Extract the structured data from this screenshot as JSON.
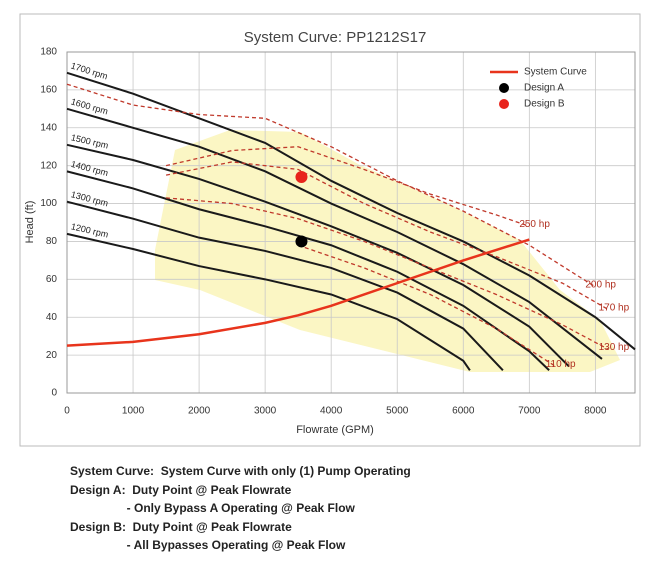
{
  "chart_data": {
    "type": "line",
    "title": "System Curve: PP1212S17",
    "x_label": "Flowrate (GPM)",
    "y_label": "Head (ft)",
    "xlim": [
      0,
      8600
    ],
    "ylim": [
      0,
      180
    ],
    "xticks": [
      0,
      1000,
      2000,
      3000,
      4000,
      5000,
      6000,
      7000,
      8000
    ],
    "yticks": [
      0,
      20,
      40,
      60,
      80,
      100,
      120,
      140,
      160,
      180
    ],
    "grid": true,
    "legend_position": "upper right",
    "series": [
      {
        "name": "1700 rpm",
        "color": "#1a1a1a",
        "label_at": "start",
        "x": [
          0,
          1000,
          2000,
          3000,
          4000,
          5000,
          6000,
          7000,
          8000,
          8600
        ],
        "values": [
          169,
          158,
          145,
          132,
          112,
          95,
          80,
          62,
          40,
          23
        ]
      },
      {
        "name": "1600 rpm",
        "color": "#1a1a1a",
        "label_at": "start",
        "x": [
          0,
          1000,
          2000,
          3000,
          4000,
          5000,
          6000,
          7000,
          8100
        ],
        "values": [
          150,
          140,
          130,
          117,
          100,
          85,
          68,
          48,
          18
        ]
      },
      {
        "name": "1500 rpm",
        "color": "#1a1a1a",
        "label_at": "start",
        "x": [
          0,
          1000,
          2000,
          3000,
          4000,
          5000,
          6000,
          7000,
          7600
        ],
        "values": [
          131,
          123,
          113,
          101,
          88,
          74,
          57,
          35,
          14
        ]
      },
      {
        "name": "1400 rpm",
        "color": "#1a1a1a",
        "label_at": "start",
        "x": [
          0,
          1000,
          2000,
          3000,
          4000,
          5000,
          6000,
          7000,
          7300
        ],
        "values": [
          117,
          108,
          97,
          88,
          78,
          64,
          46,
          22,
          12
        ]
      },
      {
        "name": "1300 rpm",
        "color": "#1a1a1a",
        "label_at": "start",
        "x": [
          0,
          1000,
          2000,
          3000,
          4000,
          5000,
          6000,
          6600
        ],
        "values": [
          101,
          92,
          82,
          75,
          66,
          53,
          34,
          12
        ]
      },
      {
        "name": "1200 rpm",
        "color": "#1a1a1a",
        "label_at": "start",
        "x": [
          0,
          1000,
          2000,
          3000,
          4000,
          5000,
          6000,
          6100
        ],
        "values": [
          84,
          76,
          67,
          60,
          52,
          39,
          17,
          12
        ]
      },
      {
        "name": "250 hp",
        "color": "#c0392b",
        "dashed": true,
        "label_at": "end",
        "x": [
          1500,
          2500,
          3500,
          4500,
          5500,
          6500,
          7000
        ],
        "values": [
          120,
          128,
          130,
          118,
          105,
          94,
          88
        ]
      },
      {
        "name": "200 hp",
        "color": "#c0392b",
        "dashed": true,
        "label_at": "end",
        "x": [
          0,
          1000,
          2000,
          3000,
          4000,
          5000,
          6000,
          7000,
          8000
        ],
        "values": [
          163,
          152,
          147,
          145,
          130,
          112,
          96,
          78,
          56
        ]
      },
      {
        "name": "170 hp",
        "color": "#c0392b",
        "dashed": true,
        "label_at": "end",
        "x": [
          1500,
          2500,
          3500,
          4500,
          5500,
          6500,
          7500,
          8200
        ],
        "values": [
          115,
          122,
          118,
          100,
          85,
          72,
          58,
          44
        ]
      },
      {
        "name": "130 hp",
        "color": "#c0392b",
        "dashed": true,
        "label_at": "end",
        "x": [
          1500,
          2500,
          3500,
          4500,
          5500,
          6500,
          7500,
          8200
        ],
        "values": [
          103,
          100,
          92,
          80,
          66,
          52,
          36,
          23
        ]
      },
      {
        "name": "110 hp",
        "color": "#c0392b",
        "dashed": true,
        "label_at": "end",
        "x": [
          3500,
          4500,
          5500,
          6500,
          7400
        ],
        "values": [
          78,
          66,
          52,
          34,
          14
        ]
      },
      {
        "name": "System Curve",
        "color": "#e8341c",
        "legend": true,
        "x": [
          0,
          1000,
          2000,
          3000,
          3500,
          4000,
          5000,
          6000,
          7000
        ],
        "values": [
          25,
          27,
          31,
          37,
          41,
          46,
          58,
          70,
          81
        ]
      },
      {
        "name": "Design A",
        "color": "#000000",
        "legend": true,
        "marker": true,
        "x": [
          3550
        ],
        "values": [
          80
        ]
      },
      {
        "name": "Design B",
        "color": "#e8241c",
        "legend": true,
        "marker": true,
        "x": [
          3550
        ],
        "values": [
          114
        ]
      }
    ]
  },
  "notes": [
    "System Curve:  System Curve with only (1) Pump Operating",
    "Design A:  Duty Point @ Peak Flowrate",
    "                 - Only Bypass A Operating @ Peak Flow",
    "Design B:  Duty Point @ Peak Flowrate",
    "                 - All Bypasses Operating @ Peak Flow"
  ]
}
